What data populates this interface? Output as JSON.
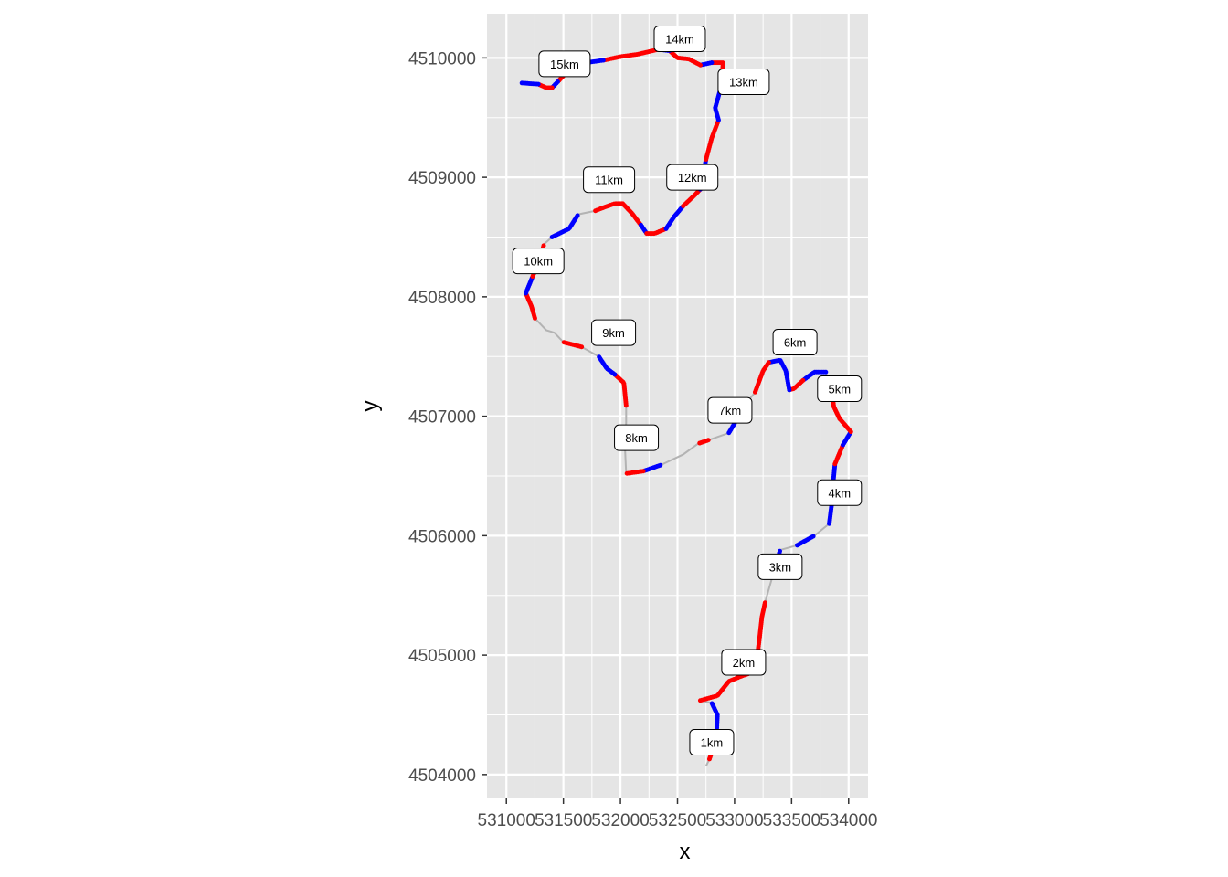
{
  "chart_data": {
    "type": "scatter",
    "title": "",
    "xlabel": "x",
    "ylabel": "y",
    "xlim": [
      530830,
      534170
    ],
    "ylim": [
      4503800,
      4510370
    ],
    "x_ticks": [
      531000,
      531500,
      532000,
      532500,
      533000,
      533500,
      534000
    ],
    "x_tick_labels": [
      "531000",
      "531500",
      "532000",
      "532500",
      "533000",
      "533500",
      "534000"
    ],
    "y_ticks": [
      4504000,
      4505000,
      4506000,
      4507000,
      4508000,
      4509000,
      4510000
    ],
    "y_tick_labels": [
      "4504000",
      "4505000",
      "4506000",
      "4507000",
      "4508000",
      "4509000",
      "4510000"
    ],
    "grid": true,
    "colors": {
      "panel": "#e5e5e5",
      "grid": "#ffffff",
      "track": "#b3b3b3",
      "segment_a": "#ff0000",
      "segment_b": "#0000ff"
    },
    "track": [
      [
        532750,
        4504070
      ],
      [
        532780,
        4504130
      ],
      [
        532840,
        4504300
      ],
      [
        532850,
        4504500
      ],
      [
        532800,
        4504600
      ],
      [
        532700,
        4504620
      ],
      [
        532850,
        4504660
      ],
      [
        532950,
        4504780
      ],
      [
        533050,
        4504820
      ],
      [
        533170,
        4504860
      ],
      [
        533200,
        4505000
      ],
      [
        533220,
        4505150
      ],
      [
        533240,
        4505320
      ],
      [
        533270,
        4505450
      ],
      [
        533330,
        4505650
      ],
      [
        533400,
        4505880
      ],
      [
        533550,
        4505920
      ],
      [
        533700,
        4506000
      ],
      [
        533830,
        4506100
      ],
      [
        533850,
        4506250
      ],
      [
        533860,
        4506400
      ],
      [
        533880,
        4506600
      ],
      [
        533950,
        4506760
      ],
      [
        534020,
        4506870
      ],
      [
        533920,
        4506980
      ],
      [
        533870,
        4507080
      ],
      [
        533850,
        4507230
      ],
      [
        533800,
        4507370
      ],
      [
        533700,
        4507370
      ],
      [
        533600,
        4507300
      ],
      [
        533520,
        4507230
      ],
      [
        533480,
        4507220
      ],
      [
        533450,
        4507380
      ],
      [
        533400,
        4507470
      ],
      [
        533300,
        4507450
      ],
      [
        533250,
        4507380
      ],
      [
        533180,
        4507200
      ],
      [
        533050,
        4507050
      ],
      [
        533000,
        4506940
      ],
      [
        532950,
        4506860
      ],
      [
        532770,
        4506800
      ],
      [
        532680,
        4506770
      ],
      [
        532550,
        4506680
      ],
      [
        532350,
        4506590
      ],
      [
        532200,
        4506540
      ],
      [
        532050,
        4506520
      ],
      [
        532040,
        4506730
      ],
      [
        532050,
        4506950
      ],
      [
        532050,
        4507090
      ],
      [
        532030,
        4507280
      ],
      [
        531950,
        4507350
      ],
      [
        531880,
        4507400
      ],
      [
        531810,
        4507500
      ],
      [
        531660,
        4507580
      ],
      [
        531500,
        4507620
      ],
      [
        531420,
        4507700
      ],
      [
        531350,
        4507720
      ],
      [
        531250,
        4507820
      ],
      [
        531220,
        4507920
      ],
      [
        531170,
        4508030
      ],
      [
        531230,
        4508170
      ],
      [
        531290,
        4508300
      ],
      [
        531330,
        4508440
      ],
      [
        531400,
        4508500
      ],
      [
        531550,
        4508570
      ],
      [
        531630,
        4508690
      ],
      [
        531780,
        4508720
      ],
      [
        531860,
        4508750
      ],
      [
        531950,
        4508780
      ],
      [
        532020,
        4508780
      ],
      [
        532100,
        4508700
      ],
      [
        532180,
        4508600
      ],
      [
        532230,
        4508530
      ],
      [
        532300,
        4508530
      ],
      [
        532400,
        4508570
      ],
      [
        532470,
        4508670
      ],
      [
        532550,
        4508760
      ],
      [
        532650,
        4508850
      ],
      [
        532700,
        4508900
      ],
      [
        532750,
        4509150
      ],
      [
        532800,
        4509330
      ],
      [
        532860,
        4509480
      ],
      [
        532830,
        4509580
      ],
      [
        532880,
        4509750
      ],
      [
        532900,
        4509960
      ],
      [
        532800,
        4509960
      ],
      [
        532700,
        4509940
      ],
      [
        532600,
        4509990
      ],
      [
        532500,
        4510000
      ],
      [
        532430,
        4510060
      ],
      [
        532330,
        4510070
      ],
      [
        532150,
        4510030
      ],
      [
        532000,
        4510010
      ],
      [
        531850,
        4509980
      ],
      [
        531700,
        4509960
      ],
      [
        531550,
        4509900
      ],
      [
        531450,
        4509800
      ],
      [
        531400,
        4509750
      ],
      [
        531350,
        4509750
      ],
      [
        531280,
        4509780
      ],
      [
        531130,
        4509790
      ]
    ],
    "segments": [
      {
        "color": "a",
        "from": 1,
        "to": 2
      },
      {
        "color": "b",
        "from": 2,
        "to": 4
      },
      {
        "color": "a",
        "from": 5,
        "to": 9
      },
      {
        "color": "a",
        "from": 10,
        "to": 13
      },
      {
        "color": "b",
        "from": 14,
        "to": 15
      },
      {
        "color": "b",
        "from": 16,
        "to": 17
      },
      {
        "color": "b",
        "from": 18,
        "to": 19
      },
      {
        "color": "b",
        "from": 19,
        "to": 21
      },
      {
        "color": "a",
        "from": 21,
        "to": 22
      },
      {
        "color": "b",
        "from": 22,
        "to": 23
      },
      {
        "color": "a",
        "from": 23,
        "to": 24
      },
      {
        "color": "a",
        "from": 24,
        "to": 26
      },
      {
        "color": "b",
        "from": 27,
        "to": 29
      },
      {
        "color": "a",
        "from": 29,
        "to": 31
      },
      {
        "color": "b",
        "from": 31,
        "to": 34
      },
      {
        "color": "a",
        "from": 34,
        "to": 36
      },
      {
        "color": "b",
        "from": 38,
        "to": 39
      },
      {
        "color": "a",
        "from": 40,
        "to": 41
      },
      {
        "color": "b",
        "from": 43,
        "to": 44
      },
      {
        "color": "a",
        "from": 44,
        "to": 45
      },
      {
        "color": "a",
        "from": 48,
        "to": 50
      },
      {
        "color": "b",
        "from": 50,
        "to": 52
      },
      {
        "color": "a",
        "from": 53,
        "to": 54
      },
      {
        "color": "a",
        "from": 57,
        "to": 59
      },
      {
        "color": "b",
        "from": 59,
        "to": 60
      },
      {
        "color": "a",
        "from": 60,
        "to": 62
      },
      {
        "color": "b",
        "from": 63,
        "to": 65
      },
      {
        "color": "a",
        "from": 66,
        "to": 69
      },
      {
        "color": "a",
        "from": 69,
        "to": 71
      },
      {
        "color": "b",
        "from": 71,
        "to": 72
      },
      {
        "color": "a",
        "from": 72,
        "to": 74
      },
      {
        "color": "b",
        "from": 74,
        "to": 76
      },
      {
        "color": "a",
        "from": 76,
        "to": 78
      },
      {
        "color": "b",
        "from": 78,
        "to": 79
      },
      {
        "color": "a",
        "from": 79,
        "to": 81
      },
      {
        "color": "b",
        "from": 81,
        "to": 83
      },
      {
        "color": "a",
        "from": 83,
        "to": 85
      },
      {
        "color": "b",
        "from": 85,
        "to": 86
      },
      {
        "color": "a",
        "from": 86,
        "to": 89
      },
      {
        "color": "b",
        "from": 89,
        "to": 90
      },
      {
        "color": "a",
        "from": 90,
        "to": 93
      },
      {
        "color": "b",
        "from": 93,
        "to": 94
      },
      {
        "color": "a",
        "from": 94,
        "to": 96
      },
      {
        "color": "b",
        "from": 96,
        "to": 97
      },
      {
        "color": "a",
        "from": 97,
        "to": 99
      },
      {
        "color": "b",
        "from": 99,
        "to": 100
      }
    ],
    "km_labels": [
      {
        "text": "1km",
        "x": 532800,
        "y": 4504270
      },
      {
        "text": "2km",
        "x": 533080,
        "y": 4504940
      },
      {
        "text": "3km",
        "x": 533400,
        "y": 4505740
      },
      {
        "text": "4km",
        "x": 533920,
        "y": 4506360
      },
      {
        "text": "5km",
        "x": 533920,
        "y": 4507230
      },
      {
        "text": "6km",
        "x": 533530,
        "y": 4507620
      },
      {
        "text": "7km",
        "x": 532960,
        "y": 4507050
      },
      {
        "text": "8km",
        "x": 532140,
        "y": 4506820
      },
      {
        "text": "9km",
        "x": 531940,
        "y": 4507700
      },
      {
        "text": "10km",
        "x": 531280,
        "y": 4508300
      },
      {
        "text": "11km",
        "x": 531900,
        "y": 4508980
      },
      {
        "text": "12km",
        "x": 532630,
        "y": 4509000
      },
      {
        "text": "13km",
        "x": 533080,
        "y": 4509800
      },
      {
        "text": "14km",
        "x": 532520,
        "y": 4510160
      },
      {
        "text": "15km",
        "x": 531510,
        "y": 4509950
      }
    ]
  }
}
